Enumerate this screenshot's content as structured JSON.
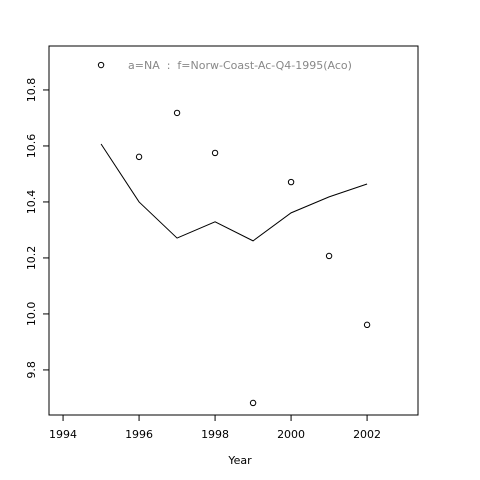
{
  "chart_data": {
    "type": "line",
    "title": "a=NA  :  f=Norw-Coast-Ac-Q4-1995(Aco)",
    "x_label": "Year",
    "x": [
      1995,
      1996,
      1997,
      1998,
      1999,
      2000,
      2001,
      2002
    ],
    "series": [
      {
        "kind": "points",
        "color": "#000000",
        "values": [
          10.889,
          10.561,
          10.718,
          10.575,
          9.682,
          10.471,
          10.207,
          9.961
        ]
      },
      {
        "kind": "line",
        "color": "#000000",
        "values": [
          10.607,
          10.4,
          10.271,
          10.329,
          10.261,
          10.361,
          10.418,
          10.464
        ]
      }
    ],
    "xlim": [
      1993.63,
      2003.34
    ],
    "xticks": [
      1994,
      1996,
      1998,
      2000,
      2002
    ],
    "ylim": [
      9.639,
      10.957
    ],
    "yticks": [
      9.8,
      {
        "value": 10,
        "label": "10.0"
      },
      10.2,
      10.4,
      10.6,
      10.8
    ]
  }
}
